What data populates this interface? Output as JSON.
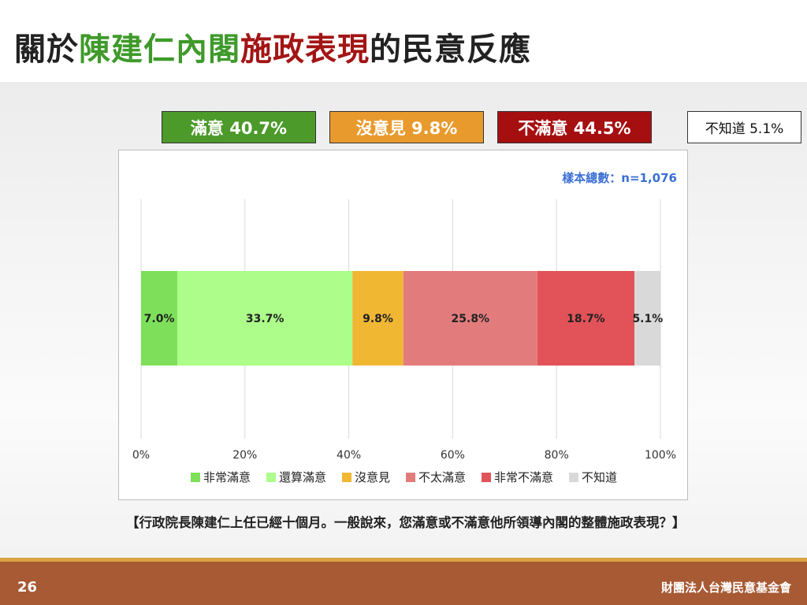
{
  "title": {
    "part1": "關於",
    "part2": "陳建仁內閣",
    "part3": "施政表現",
    "part4": "的民意反應",
    "colors": {
      "part1": "#222222",
      "part2": "#3f9a2b",
      "part3": "#a31515",
      "part4": "#222222"
    }
  },
  "summary": [
    {
      "label": "滿意 40.7%",
      "bg": "#4c9a2a",
      "fg": "#ffffff"
    },
    {
      "label": "沒意見 9.8%",
      "bg": "#e99a2c",
      "fg": "#ffffff"
    },
    {
      "label": "不滿意 44.5%",
      "bg": "#a60f10",
      "fg": "#ffffff"
    },
    {
      "label": "不知道 5.1%",
      "bg": "#ffffff",
      "fg": "#111111"
    }
  ],
  "sample_note": "樣本總數：n=1,076",
  "chart_data": {
    "type": "bar",
    "orientation": "horizontal",
    "stacked": true,
    "xlim": [
      0,
      100
    ],
    "xticks": [
      "0%",
      "20%",
      "40%",
      "60%",
      "80%",
      "100%"
    ],
    "grid": true,
    "legend_position": "bottom",
    "series": [
      {
        "name": "非常滿意",
        "value": 7.0,
        "label": "7.0%",
        "color": "#7ee05a"
      },
      {
        "name": "還算滿意",
        "value": 33.7,
        "label": "33.7%",
        "color": "#acfd89"
      },
      {
        "name": "沒意見",
        "value": 9.8,
        "label": "9.8%",
        "color": "#f0b733"
      },
      {
        "name": "不太滿意",
        "value": 25.8,
        "label": "25.8%",
        "color": "#e27c7c"
      },
      {
        "name": "非常不滿意",
        "value": 18.7,
        "label": "18.7%",
        "color": "#e15358"
      },
      {
        "name": "不知道",
        "value": 5.1,
        "label": "5.1%",
        "color": "#d9d9d9"
      }
    ]
  },
  "question": "【行政院長陳建仁上任已經十個月。一般說來，您滿意或不滿意他所領導內閣的整體施政表現？】",
  "footer": {
    "page": "26",
    "org": "財團法人台灣民意基金會"
  }
}
